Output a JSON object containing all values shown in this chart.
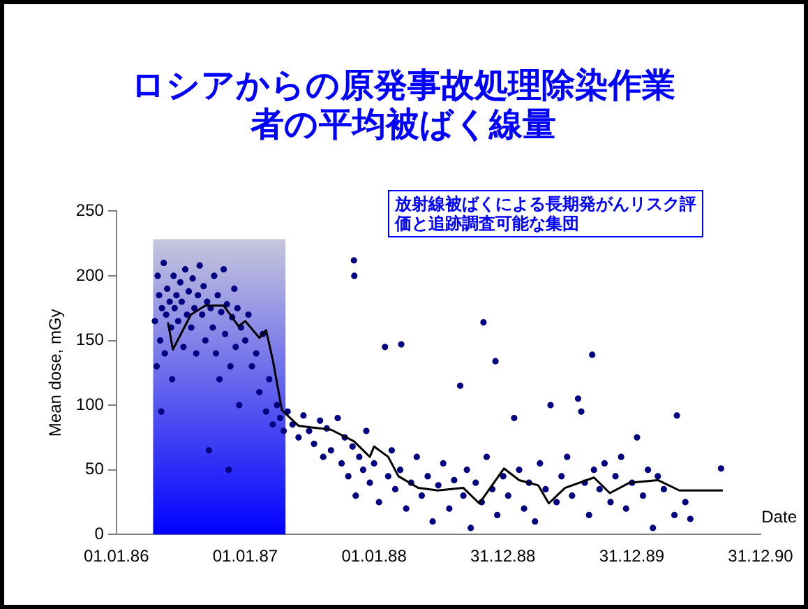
{
  "chart_data": {
    "type": "scatter",
    "title": "ロシアからの原発事故処理除染作業者の平均被ばく線量",
    "xlabel": "Date",
    "ylabel": "Mean dose, mGy",
    "annotations": [
      "放射線被ばくによる長期発がんリスク評価と追跡調査可能な集団"
    ],
    "xlim": [
      "1986-01-01",
      "1990-12-31"
    ],
    "xticks": [
      {
        "value": "1986-01-01",
        "label": "01.01.86"
      },
      {
        "value": "1987-01-01",
        "label": "01.01.87"
      },
      {
        "value": "1988-01-01",
        "label": "01.01.88"
      },
      {
        "value": "1988-12-31",
        "label": "31.12.88"
      },
      {
        "value": "1989-12-31",
        "label": "31.12.89"
      },
      {
        "value": "1990-12-31",
        "label": "31.12.90"
      }
    ],
    "ylim": [
      0,
      250
    ],
    "yticks": [
      0,
      50,
      100,
      150,
      200,
      250
    ],
    "grid": false,
    "legend": false,
    "marker": "circle",
    "bands": [
      {
        "axis": "x",
        "from": "1986-04-15",
        "to": "1987-04-25",
        "color": "#0000ff"
      }
    ],
    "series": [
      {
        "color": "#000080",
        "x": [
          "1986-04-20",
          "1986-04-25",
          "1986-04-28",
          "1986-05-02",
          "1986-05-05",
          "1986-05-08",
          "1986-05-10",
          "1986-05-15",
          "1986-05-18",
          "1986-05-22",
          "1986-05-25",
          "1986-06-01",
          "1986-06-05",
          "1986-06-08",
          "1986-06-12",
          "1986-06-15",
          "1986-06-20",
          "1986-06-25",
          "1986-07-01",
          "1986-07-05",
          "1986-07-10",
          "1986-07-15",
          "1986-07-20",
          "1986-07-25",
          "1986-08-01",
          "1986-08-05",
          "1986-08-10",
          "1986-08-15",
          "1986-08-20",
          "1986-08-25",
          "1986-09-01",
          "1986-09-05",
          "1986-09-10",
          "1986-09-15",
          "1986-09-20",
          "1986-09-25",
          "1986-10-01",
          "1986-10-05",
          "1986-10-10",
          "1986-10-15",
          "1986-10-20",
          "1986-10-25",
          "1986-11-01",
          "1986-11-05",
          "1986-11-10",
          "1986-11-15",
          "1986-11-20",
          "1986-11-25",
          "1986-12-01",
          "1986-12-05",
          "1986-12-10",
          "1986-12-15",
          "1986-12-20",
          "1987-01-01",
          "1987-01-10",
          "1987-01-20",
          "1987-02-01",
          "1987-02-10",
          "1987-02-20",
          "1987-03-01",
          "1987-03-10",
          "1987-03-20",
          "1987-04-01",
          "1987-04-10",
          "1987-04-20",
          "1987-05-01",
          "1987-05-15",
          "1987-06-01",
          "1987-06-15",
          "1987-07-01",
          "1987-07-15",
          "1987-08-01",
          "1987-08-10",
          "1987-08-20",
          "1987-09-01",
          "1987-11-05",
          "1987-11-06",
          "1987-09-20",
          "1987-10-01",
          "1987-10-10",
          "1987-10-20",
          "1987-11-01",
          "1987-11-10",
          "1987-11-20",
          "1987-12-01",
          "1987-12-10",
          "1987-12-20",
          "1988-01-01",
          "1988-01-15",
          "1988-02-01",
          "1988-02-10",
          "1988-02-20",
          "1988-03-01",
          "1988-03-15",
          "1988-03-18",
          "1988-04-01",
          "1988-04-15",
          "1988-05-01",
          "1988-05-15",
          "1988-06-01",
          "1988-06-15",
          "1988-07-01",
          "1988-07-15",
          "1988-08-01",
          "1988-08-15",
          "1988-09-01",
          "1988-09-10",
          "1988-09-20",
          "1988-10-01",
          "1988-10-15",
          "1988-11-01",
          "1988-11-06",
          "1988-11-15",
          "1988-12-01",
          "1988-12-10",
          "1988-12-15",
          "1989-01-01",
          "1989-01-15",
          "1989-02-01",
          "1989-02-15",
          "1989-03-01",
          "1989-03-15",
          "1989-04-01",
          "1989-04-15",
          "1989-05-01",
          "1989-05-15",
          "1989-06-01",
          "1989-06-15",
          "1989-07-01",
          "1989-07-15",
          "1989-08-01",
          "1989-08-10",
          "1989-08-20",
          "1989-09-01",
          "1989-09-10",
          "1989-09-15",
          "1989-10-01",
          "1989-10-15",
          "1989-11-01",
          "1989-11-15",
          "1989-12-01",
          "1989-12-15",
          "1990-01-01",
          "1990-01-15",
          "1990-02-01",
          "1990-02-15",
          "1990-03-01",
          "1990-03-15",
          "1990-04-01",
          "1990-05-01",
          "1990-05-08",
          "1990-06-01",
          "1990-06-15",
          "1990-09-10"
        ],
        "values": [
          165,
          130,
          200,
          185,
          150,
          95,
          175,
          210,
          140,
          170,
          190,
          180,
          160,
          120,
          200,
          175,
          185,
          165,
          195,
          180,
          145,
          205,
          170,
          188,
          160,
          198,
          175,
          140,
          185,
          208,
          170,
          192,
          150,
          180,
          65,
          175,
          160,
          200,
          140,
          185,
          120,
          172,
          205,
          155,
          178,
          50,
          130,
          168,
          190,
          145,
          175,
          100,
          160,
          150,
          170,
          130,
          140,
          110,
          155,
          95,
          120,
          85,
          100,
          90,
          80,
          95,
          85,
          75,
          92,
          80,
          70,
          88,
          60,
          82,
          65,
          212,
          200,
          90,
          55,
          75,
          45,
          68,
          30,
          60,
          50,
          80,
          40,
          55,
          25,
          145,
          45,
          65,
          35,
          50,
          147,
          20,
          40,
          60,
          30,
          45,
          10,
          38,
          55,
          20,
          42,
          115,
          30,
          50,
          5,
          40,
          25,
          164,
          60,
          35,
          134,
          15,
          45,
          30,
          90,
          50,
          20,
          40,
          10,
          55,
          35,
          100,
          25,
          45,
          60,
          30,
          105,
          95,
          40,
          15,
          139,
          50,
          35,
          55,
          25,
          45,
          60,
          20,
          40,
          75,
          30,
          50,
          5,
          45,
          35,
          15,
          92,
          25,
          12,
          51
        ]
      },
      {
        "type": "line",
        "color": "#000000",
        "marker": "none",
        "x": [
          "1986-05-27",
          "1986-06-10",
          "1986-07-31",
          "1986-09-10",
          "1986-11-01",
          "1986-12-13",
          "1987-01-01",
          "1987-02-10",
          "1987-03-01",
          "1987-03-20",
          "1987-04-15",
          "1987-06-01",
          "1987-09-01",
          "1987-11-05",
          "1987-12-20",
          "1988-01-01",
          "1988-02-10",
          "1988-03-10",
          "1988-05-05",
          "1988-06-30",
          "1988-09-10",
          "1988-10-25",
          "1989-01-03",
          "1989-02-15",
          "1989-04-10",
          "1989-05-10",
          "1989-06-25",
          "1989-09-15",
          "1989-10-30",
          "1989-12-25",
          "1990-03-15",
          "1990-05-15",
          "1990-09-15"
        ],
        "values": [
          164,
          143,
          170,
          177,
          177,
          161,
          165,
          152,
          158,
          135,
          96,
          84,
          81,
          72,
          60,
          68,
          60,
          45,
          36,
          34,
          36,
          24,
          51,
          42,
          38,
          24,
          36,
          44,
          32,
          40,
          42,
          34,
          34
        ]
      }
    ]
  }
}
